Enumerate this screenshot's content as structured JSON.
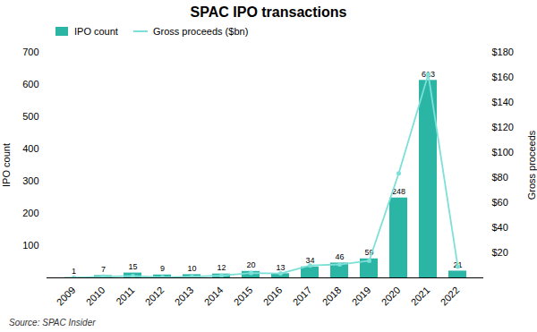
{
  "chart_data": {
    "type": "bar",
    "title": "SPAC IPO transactions",
    "categories": [
      "2009",
      "2010",
      "2011",
      "2012",
      "2013",
      "2014",
      "2015",
      "2016",
      "2017",
      "2018",
      "2019",
      "2020",
      "2021",
      "2022"
    ],
    "series": [
      {
        "name": "IPO count",
        "type": "bar",
        "color": "#2ab5a5",
        "data_labels": true,
        "values": [
          1,
          7,
          15,
          9,
          10,
          12,
          20,
          13,
          34,
          46,
          59,
          248,
          613,
          21
        ]
      },
      {
        "name": "Gross proceeds ($bn)",
        "type": "line",
        "color": "#7de0d8",
        "marker": "o",
        "axis": "y2",
        "values": [
          0.1,
          1.0,
          1.5,
          0.5,
          0.9,
          1.8,
          3.9,
          3.5,
          9.9,
          10.7,
          13.6,
          83.4,
          162.5,
          9.0
        ]
      }
    ],
    "ylabel": "IPO count",
    "y2label": "Gross proceeds",
    "ylim": [
      0,
      700
    ],
    "yticks": [
      100,
      200,
      300,
      400,
      500,
      600,
      700
    ],
    "y2lim": [
      0,
      180
    ],
    "y2ticks": [
      {
        "value": 20,
        "label": "$20"
      },
      {
        "value": 40,
        "label": "$40"
      },
      {
        "value": 60,
        "label": "$60"
      },
      {
        "value": 80,
        "label": "$80"
      },
      {
        "value": 100,
        "label": "$100"
      },
      {
        "value": 120,
        "label": "$120"
      },
      {
        "value": 140,
        "label": "$140"
      },
      {
        "value": 160,
        "label": "$160"
      },
      {
        "value": 180,
        "label": "$180"
      }
    ],
    "legend": "upper left",
    "grid": false,
    "annotations": [
      "Source: SPAC Insider"
    ]
  }
}
